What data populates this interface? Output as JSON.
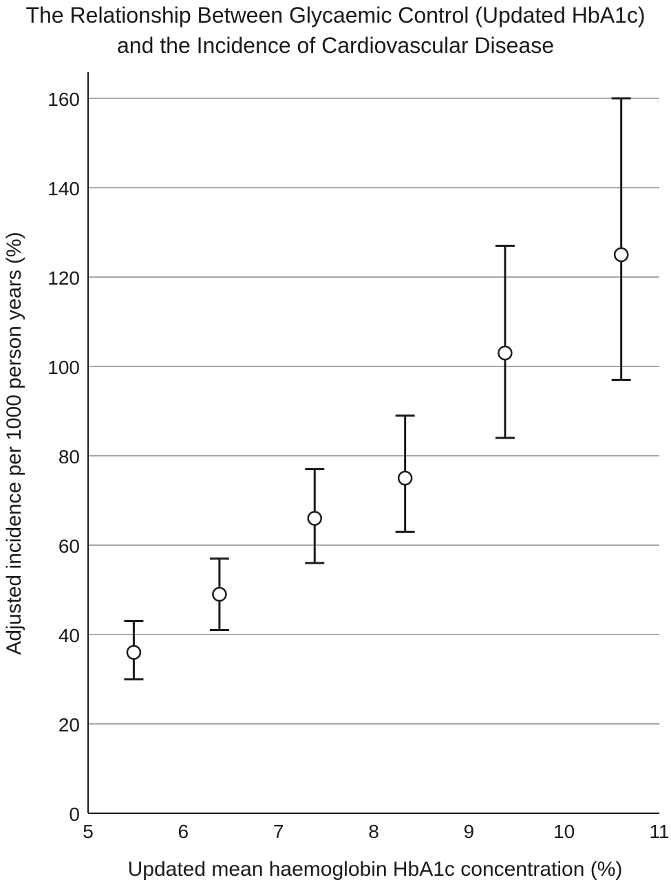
{
  "chart_data": {
    "type": "scatter",
    "title_lines": [
      "The Relationship Between Glycaemic Control (Updated HbA1c)",
      "and the Incidence of Cardiovascular Disease"
    ],
    "xlabel": "Updated mean haemoglobin HbA1c concentration (%)",
    "ylabel": "Adjusted incidence per 1000 person years (%)",
    "xlim": [
      5,
      11
    ],
    "ylim": [
      0,
      160
    ],
    "x_ticks": [
      5,
      6,
      7,
      8,
      9,
      10,
      11
    ],
    "y_ticks": [
      0,
      20,
      40,
      60,
      80,
      100,
      120,
      140,
      160
    ],
    "grid": "horizontal",
    "points": [
      {
        "x": 5.48,
        "y": 36,
        "lower": 30,
        "upper": 43
      },
      {
        "x": 6.38,
        "y": 49,
        "lower": 41,
        "upper": 57
      },
      {
        "x": 7.38,
        "y": 66,
        "lower": 56,
        "upper": 77
      },
      {
        "x": 8.33,
        "y": 75,
        "lower": 63,
        "upper": 89
      },
      {
        "x": 9.38,
        "y": 103,
        "lower": 84,
        "upper": 127
      },
      {
        "x": 10.6,
        "y": 125,
        "lower": 97,
        "upper": 160
      }
    ]
  }
}
